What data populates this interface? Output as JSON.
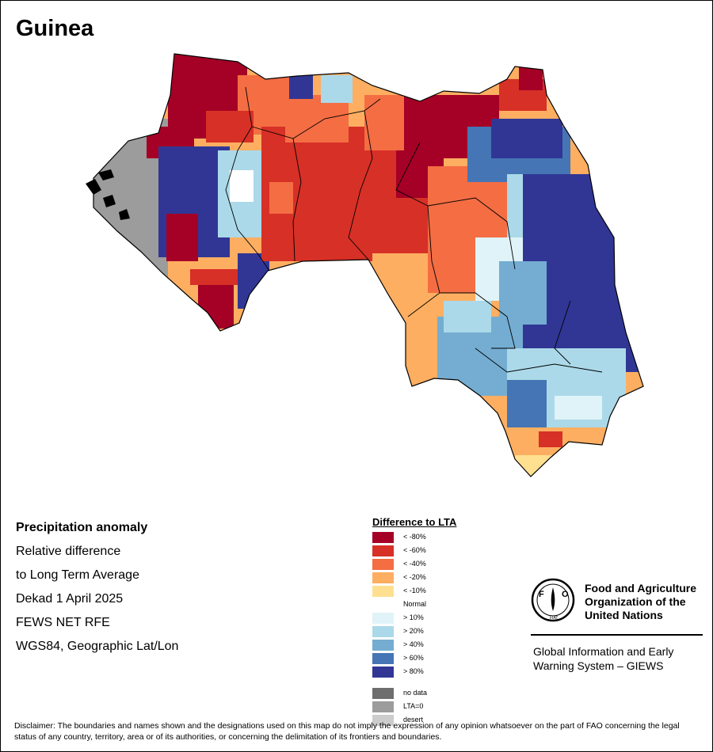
{
  "title": "Guinea",
  "info": {
    "heading": "Precipitation anomaly",
    "line1": "Relative difference",
    "line2": "to Long Term Average",
    "period": "Dekad 1 April 2025",
    "source": "FEWS NET RFE",
    "projection": "WGS84, Geographic Lat/Lon"
  },
  "legend": {
    "title": "Difference to LTA",
    "items": [
      {
        "label": "< -80%",
        "color": "#a50026"
      },
      {
        "label": "< -60%",
        "color": "#d73027"
      },
      {
        "label": "< -40%",
        "color": "#f46d43"
      },
      {
        "label": "< -20%",
        "color": "#fdae61"
      },
      {
        "label": "< -10%",
        "color": "#fee090"
      },
      {
        "label": "Normal",
        "color": "#ffffff"
      },
      {
        "label": "> 10%",
        "color": "#e0f3f8"
      },
      {
        "label": "> 20%",
        "color": "#abd9e9"
      },
      {
        "label": "> 40%",
        "color": "#74add1"
      },
      {
        "label": "> 60%",
        "color": "#4575b4"
      },
      {
        "label": "> 80%",
        "color": "#313695"
      }
    ],
    "special": [
      {
        "label": "no data",
        "color": "#6e6e6e"
      },
      {
        "label": "LTA=0",
        "color": "#9c9c9c"
      },
      {
        "label": "desert",
        "color": "#cccccc"
      }
    ]
  },
  "fao": {
    "name": "Food and Agriculture Organization of the United Nations",
    "logo_letters": "FAO",
    "motto": "FIAT PANIS",
    "system": "Global Information and Early Warning System – GIEWS"
  },
  "disclaimer": "Disclaimer: The boundaries and names shown and the designations used on this map do not imply the expression of any opinion whatsoever on the part of FAO concerning the legal status of any country, territory, area or of its authorities, or concerning the delimitation of its frontiers and boundaries."
}
